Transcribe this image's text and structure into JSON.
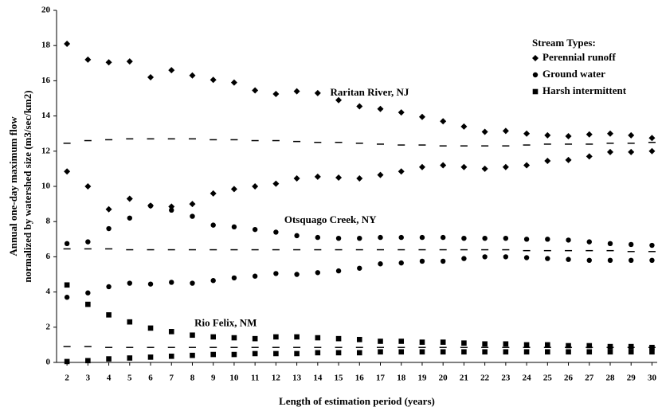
{
  "chart_data": {
    "type": "scatter",
    "x_label": "Length of estimation period (years)",
    "y_label": [
      "Annual one-day maximum flow",
      "normalized by watershed size (m3/sec/km2)"
    ],
    "x": [
      2,
      3,
      4,
      5,
      6,
      7,
      8,
      9,
      10,
      11,
      12,
      13,
      14,
      15,
      16,
      17,
      18,
      19,
      20,
      21,
      22,
      23,
      24,
      25,
      26,
      27,
      28,
      29,
      30
    ],
    "xlim": [
      1.5,
      30.25
    ],
    "xticks": [
      2,
      3,
      4,
      5,
      6,
      7,
      8,
      9,
      10,
      11,
      12,
      13,
      14,
      15,
      16,
      17,
      18,
      19,
      20,
      21,
      22,
      23,
      24,
      25,
      26,
      27,
      28,
      29,
      30
    ],
    "ylim": [
      0,
      20
    ],
    "yticks": [
      0,
      2,
      4,
      6,
      8,
      10,
      12,
      14,
      16,
      18,
      20
    ],
    "color": "#000000",
    "legend": {
      "title": "Stream Types:",
      "position": "upper right",
      "entries": [
        {
          "label": "Perennial runoff",
          "marker": "diamond"
        },
        {
          "label": "Ground water",
          "marker": "circle"
        },
        {
          "label": "Harsh intermittent",
          "marker": "square"
        }
      ]
    },
    "annotations": [
      {
        "text": "Raritan River, NJ",
        "x": 14.6,
        "y": 15.3
      },
      {
        "text": "Otsquago Creek, NY",
        "x": 12.4,
        "y": 8.05
      },
      {
        "text": "Rio Felix, NM",
        "x": 8.1,
        "y": 2.2
      }
    ],
    "series": [
      {
        "marker": "diamond",
        "values": [
          18.1,
          17.2,
          17.05,
          17.1,
          16.2,
          16.6,
          16.3,
          16.05,
          15.9,
          15.45,
          15.25,
          15.4,
          15.3,
          14.9,
          14.55,
          14.4,
          14.2,
          13.95,
          13.7,
          13.4,
          13.1,
          13.15,
          13.0,
          12.9,
          12.85,
          12.95,
          13.0,
          12.9,
          12.75
        ]
      },
      {
        "marker": "diamond",
        "values": [
          10.85,
          10.0,
          8.7,
          9.3,
          8.9,
          8.85,
          9.0,
          9.6,
          9.85,
          10.0,
          10.15,
          10.45,
          10.55,
          10.5,
          10.45,
          10.65,
          10.85,
          11.1,
          11.2,
          11.1,
          11.0,
          11.1,
          11.2,
          11.45,
          11.5,
          11.7,
          11.95,
          11.95,
          12.0
        ]
      },
      {
        "marker": "dash",
        "values": [
          12.45,
          12.6,
          12.65,
          12.7,
          12.7,
          12.7,
          12.7,
          12.65,
          12.65,
          12.6,
          12.6,
          12.55,
          12.5,
          12.5,
          12.45,
          12.4,
          12.35,
          12.35,
          12.3,
          12.3,
          12.3,
          12.3,
          12.35,
          12.4,
          12.4,
          12.4,
          12.45,
          12.45,
          12.5
        ]
      },
      {
        "marker": "circle",
        "values": [
          6.75,
          6.85,
          7.6,
          8.2,
          8.9,
          8.65,
          8.3,
          7.8,
          7.7,
          7.55,
          7.4,
          7.2,
          7.1,
          7.05,
          7.05,
          7.1,
          7.1,
          7.1,
          7.1,
          7.05,
          7.05,
          7.05,
          7.0,
          7.0,
          6.95,
          6.85,
          6.75,
          6.7,
          6.65
        ]
      },
      {
        "marker": "circle",
        "values": [
          3.7,
          3.95,
          4.3,
          4.5,
          4.45,
          4.55,
          4.5,
          4.65,
          4.8,
          4.9,
          5.05,
          5.0,
          5.1,
          5.2,
          5.35,
          5.6,
          5.65,
          5.75,
          5.75,
          5.9,
          6.0,
          6.0,
          5.95,
          5.9,
          5.85,
          5.8,
          5.8,
          5.8,
          5.8
        ]
      },
      {
        "marker": "dash",
        "values": [
          6.45,
          6.45,
          6.45,
          6.4,
          6.4,
          6.4,
          6.4,
          6.4,
          6.4,
          6.4,
          6.4,
          6.4,
          6.4,
          6.4,
          6.4,
          6.4,
          6.4,
          6.4,
          6.4,
          6.4,
          6.4,
          6.4,
          6.35,
          6.35,
          6.35,
          6.35,
          6.35,
          6.3,
          6.3
        ]
      },
      {
        "marker": "square",
        "values": [
          4.4,
          3.3,
          2.7,
          2.3,
          1.95,
          1.75,
          1.55,
          1.45,
          1.4,
          1.35,
          1.45,
          1.45,
          1.4,
          1.35,
          1.3,
          1.2,
          1.2,
          1.15,
          1.15,
          1.1,
          1.05,
          1.05,
          1.0,
          1.0,
          0.95,
          0.95,
          0.9,
          0.9,
          0.85
        ]
      },
      {
        "marker": "square",
        "values": [
          0.05,
          0.1,
          0.2,
          0.25,
          0.3,
          0.35,
          0.4,
          0.45,
          0.45,
          0.5,
          0.5,
          0.5,
          0.55,
          0.55,
          0.55,
          0.6,
          0.6,
          0.6,
          0.6,
          0.6,
          0.6,
          0.6,
          0.6,
          0.6,
          0.6,
          0.6,
          0.6,
          0.6,
          0.6
        ]
      },
      {
        "marker": "dash",
        "values": [
          0.9,
          0.9,
          0.85,
          0.85,
          0.85,
          0.85,
          0.85,
          0.85,
          0.85,
          0.85,
          0.85,
          0.85,
          0.85,
          0.85,
          0.85,
          0.85,
          0.85,
          0.85,
          0.85,
          0.85,
          0.85,
          0.85,
          0.85,
          0.85,
          0.85,
          0.85,
          0.85,
          0.85,
          0.85
        ]
      }
    ]
  }
}
